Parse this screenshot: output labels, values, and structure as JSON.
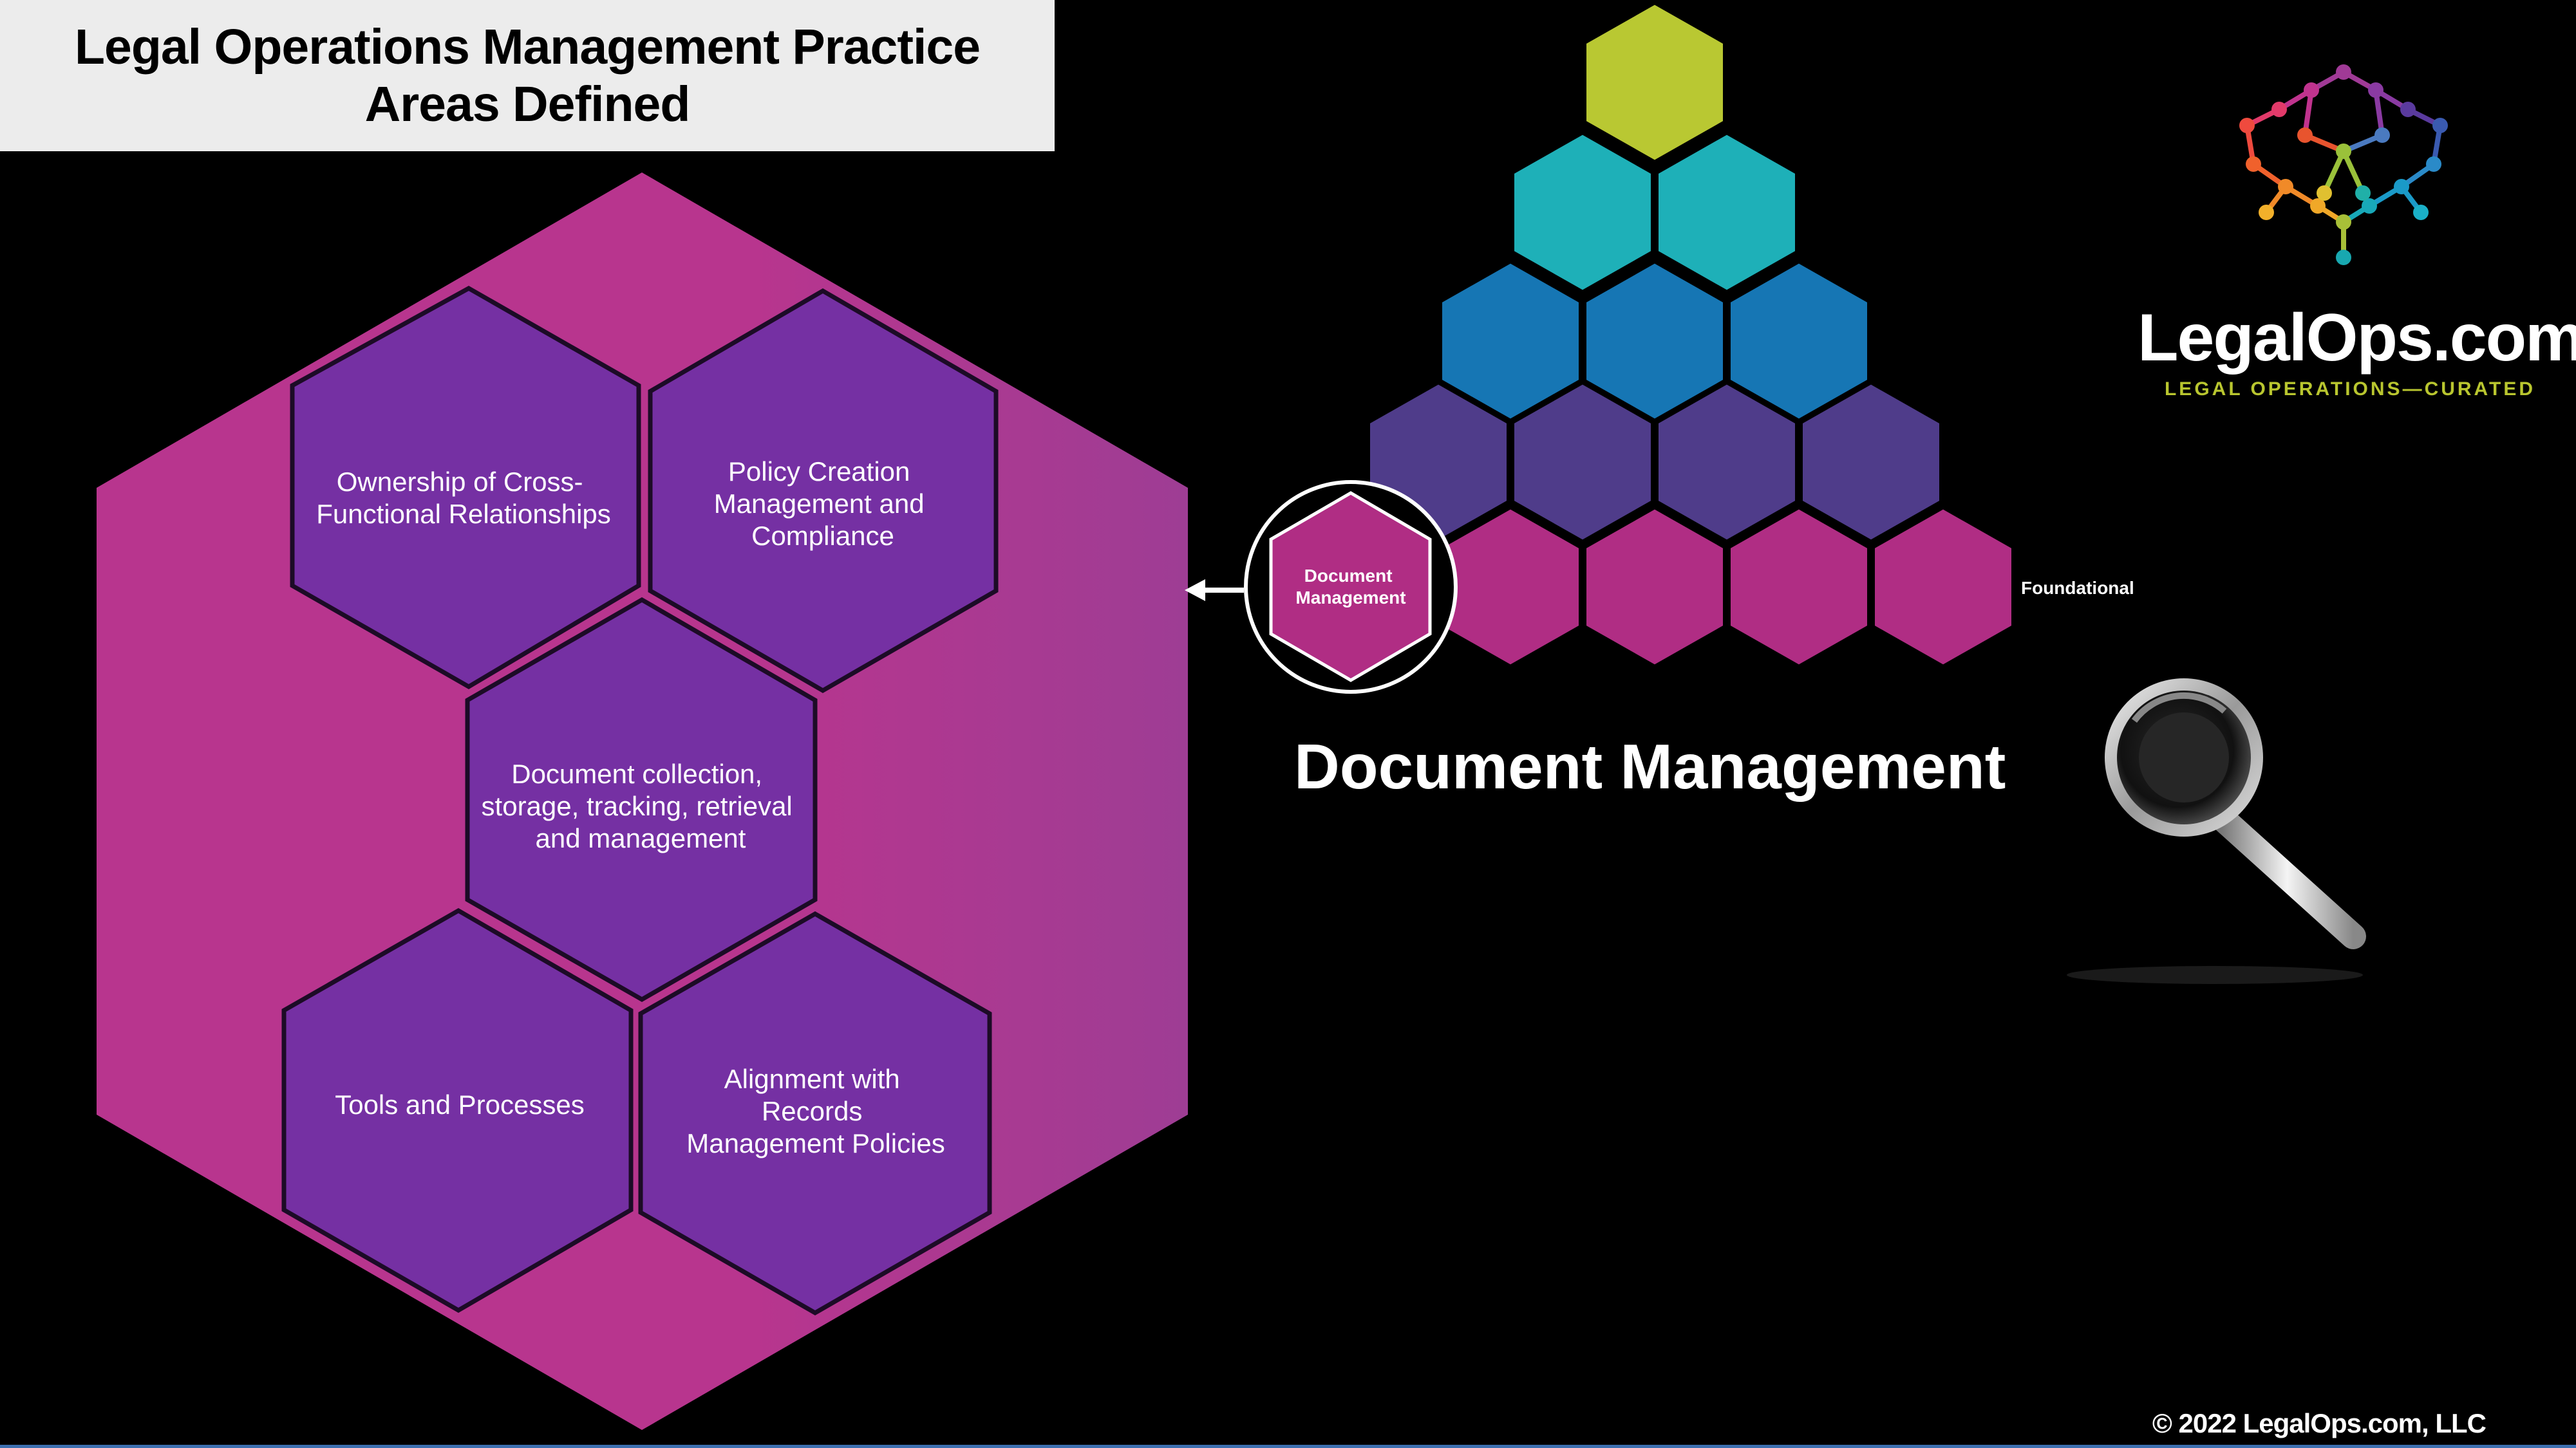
{
  "title": "Legal Operations Management Practice Areas Defined",
  "title_lines": [
    "Legal Operations Management Practice",
    "Areas Defined"
  ],
  "practice_areas": [
    {
      "id": "ownership",
      "lines": [
        "Ownership of Cross-",
        "Functional Relationships"
      ]
    },
    {
      "id": "policy",
      "lines": [
        "Policy Creation",
        "Management and",
        "Compliance"
      ]
    },
    {
      "id": "document",
      "lines": [
        "Document collection,",
        "storage, tracking, retrieval",
        "and management"
      ]
    },
    {
      "id": "tools",
      "lines": [
        "Tools and Processes"
      ]
    },
    {
      "id": "alignment",
      "lines": [
        "Alignment with",
        "Records",
        "Management Policies"
      ]
    }
  ],
  "pyramid": {
    "highlight_lines": [
      "Document",
      "Management"
    ],
    "row_label": "Foundational",
    "row_colors": [
      "#b9c832",
      "#1eb0b8",
      "#1676b4",
      "#4f3c8a",
      "#b02d84"
    ]
  },
  "main_label": "Document Management",
  "brand": {
    "name": "LegalOps.com",
    "tagline": "LEGAL OPERATIONS—CURATED"
  },
  "copyright": "© 2022 LegalOps.com, LLC",
  "colors": {
    "big_hex": "#b4358e",
    "inner_hex": "#7530a3",
    "background": "#000000"
  }
}
